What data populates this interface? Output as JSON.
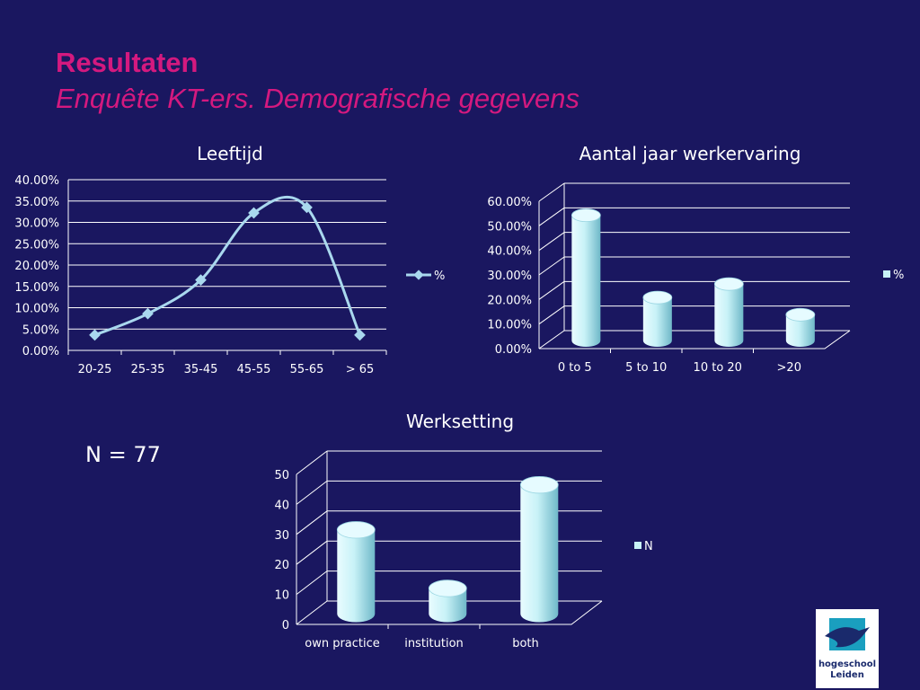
{
  "slide": {
    "title": "Resultaten",
    "subtitle": "Enquête KT-ers. Demografische gegevens",
    "n_label": "N = 77"
  },
  "logo": {
    "line1": "hogeschool",
    "line2": "Leiden",
    "icon": "hogeschool-leiden-logo"
  },
  "colors": {
    "background": "#1a1760",
    "title": "#d4197f",
    "line_series": "#a9d8ee",
    "cylinder": "#c8f2f7",
    "grid": "#ffffff"
  },
  "chart_data": [
    {
      "id": "leeftijd",
      "type": "line",
      "title": "Leeftijd",
      "categories": [
        "20-25",
        "25-35",
        "35-45",
        "45-55",
        "55-65",
        "> 65"
      ],
      "series": [
        {
          "name": "%",
          "values": [
            3.6,
            8.6,
            16.5,
            32.2,
            33.5,
            3.6
          ]
        }
      ],
      "ylim": [
        0,
        40
      ],
      "yticks": [
        "0.00%",
        "5.00%",
        "10.00%",
        "15.00%",
        "20.00%",
        "25.00%",
        "30.00%",
        "35.00%",
        "40.00%"
      ],
      "grid": true,
      "smooth": true,
      "legend": "right"
    },
    {
      "id": "werkervaring",
      "type": "bar",
      "title": "Aantal jaar werkervaring",
      "categories": [
        "0 to 5",
        "5 to 10",
        "10 to 20",
        ">20"
      ],
      "series": [
        {
          "name": "%",
          "values": [
            51,
            17.5,
            23,
            10.5
          ]
        }
      ],
      "ylim": [
        0,
        60
      ],
      "yticks": [
        "0.00%",
        "10.00%",
        "20.00%",
        "30.00%",
        "40.00%",
        "50.00%",
        "60.00%"
      ],
      "grid": true,
      "style": "3d-cylinder",
      "legend": "right"
    },
    {
      "id": "werksetting",
      "type": "bar",
      "title": "Werksetting",
      "categories": [
        "own practice",
        "institution",
        "both"
      ],
      "series": [
        {
          "name": "N",
          "values": [
            28,
            8.5,
            43
          ]
        }
      ],
      "ylim": [
        0,
        50
      ],
      "yticks": [
        "0",
        "10",
        "20",
        "30",
        "40",
        "50"
      ],
      "grid": true,
      "style": "3d-cylinder",
      "legend": "right"
    }
  ]
}
